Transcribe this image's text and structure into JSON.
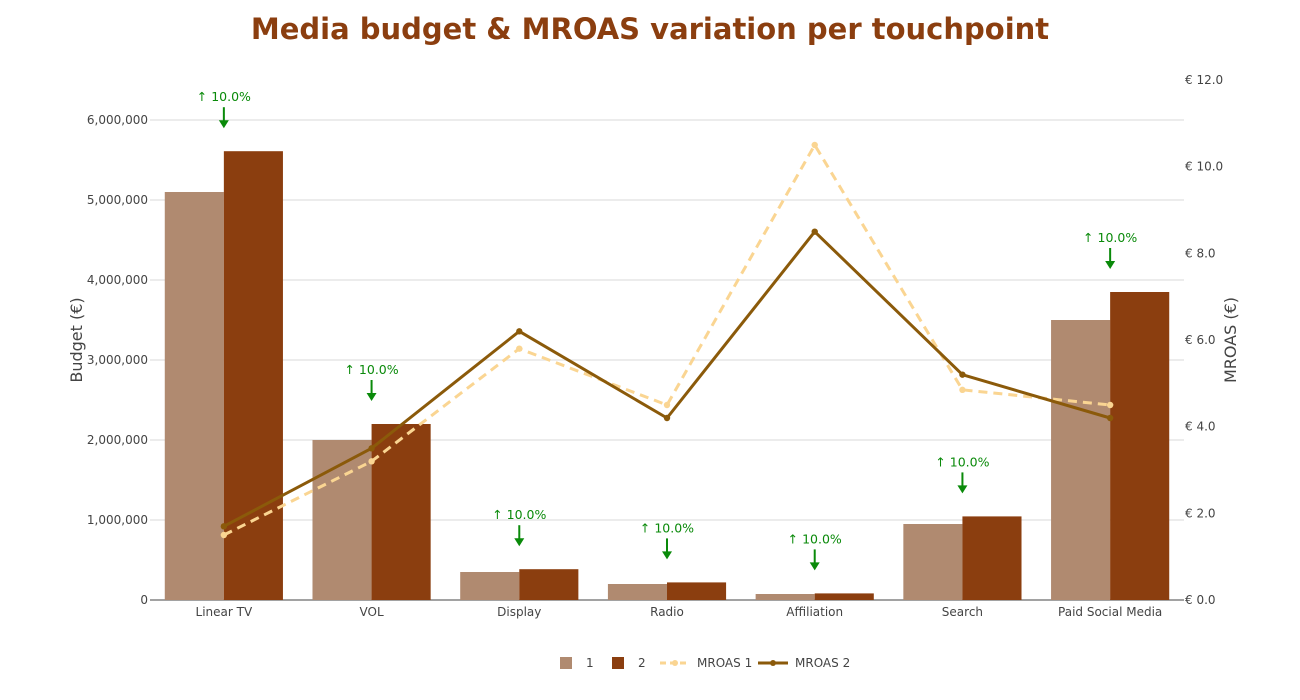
{
  "title": "Media budget & MROAS variation per touchpoint",
  "chart_data": {
    "type": "bar",
    "categories": [
      "Linear TV",
      "VOL",
      "Display",
      "Radio",
      "Affiliation",
      "Search",
      "Paid Social Media"
    ],
    "series": [
      {
        "name": "1",
        "type": "bar",
        "axis": "left",
        "color": "#b08a70",
        "values": [
          5100000,
          2000000,
          350000,
          200000,
          75000,
          950000,
          3500000
        ]
      },
      {
        "name": "2",
        "type": "bar",
        "axis": "left",
        "color": "#8b3e0f",
        "values": [
          5610000,
          2200000,
          385000,
          220000,
          82500,
          1045000,
          3850000
        ]
      },
      {
        "name": "MROAS 1",
        "type": "line",
        "axis": "right",
        "color": "#fad592",
        "dash": true,
        "values": [
          1.5,
          3.2,
          5.8,
          4.5,
          10.5,
          4.85,
          4.5
        ]
      },
      {
        "name": "MROAS 2",
        "type": "line",
        "axis": "right",
        "color": "#8b5a0a",
        "dash": false,
        "values": [
          1.7,
          3.5,
          6.2,
          4.2,
          8.5,
          5.2,
          4.2
        ]
      }
    ],
    "annotations": [
      {
        "category": "Linear TV",
        "text": "↑ 10.0%"
      },
      {
        "category": "VOL",
        "text": "↑ 10.0%"
      },
      {
        "category": "Display",
        "text": "↑ 10.0%"
      },
      {
        "category": "Radio",
        "text": "↑ 10.0%"
      },
      {
        "category": "Affiliation",
        "text": "↑ 10.0%"
      },
      {
        "category": "Search",
        "text": "↑ 10.0%"
      },
      {
        "category": "Paid Social Media",
        "text": "↑ 10.0%"
      }
    ],
    "annotation_color": "#0a8a0a",
    "ylabel": "Budget (€)",
    "y2label": "MROAS (€)",
    "ylim": [
      0,
      6500000
    ],
    "y2lim": [
      0,
      12
    ],
    "yticks": [
      "0",
      "1,000,000",
      "2,000,000",
      "3,000,000",
      "4,000,000",
      "5,000,000",
      "6,000,000"
    ],
    "y2ticks": [
      "€ 0.0",
      "€ 2.0",
      "€ 4.0",
      "€ 6.0",
      "€ 8.0",
      "€ 10.0",
      "€ 12.0"
    ],
    "grid": true,
    "legend_position": "bottom-center"
  }
}
